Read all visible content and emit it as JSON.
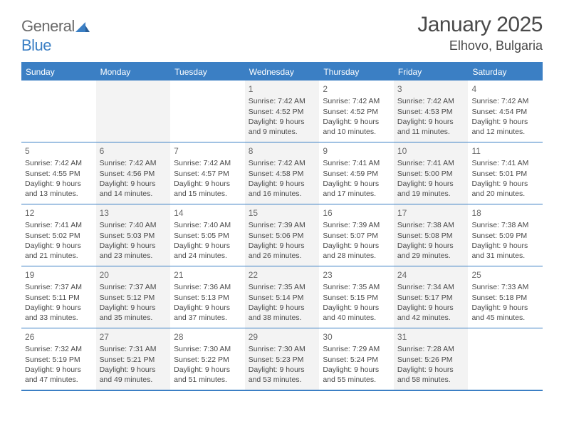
{
  "logo": {
    "word1": "General",
    "word2": "Blue"
  },
  "header": {
    "title": "January 2025",
    "location": "Elhovo, Bulgaria"
  },
  "colors": {
    "accent": "#3b7fc4",
    "text": "#4a4a4a",
    "altRowBg": "#f3f3f3"
  },
  "weekdays": [
    "Sunday",
    "Monday",
    "Tuesday",
    "Wednesday",
    "Thursday",
    "Friday",
    "Saturday"
  ],
  "layout": {
    "firstWeekdayIndex": 3,
    "daysInMonth": 31
  },
  "days": {
    "1": {
      "sunrise": "7:42 AM",
      "sunset": "4:52 PM",
      "daylight": "9 hours and 9 minutes."
    },
    "2": {
      "sunrise": "7:42 AM",
      "sunset": "4:52 PM",
      "daylight": "9 hours and 10 minutes."
    },
    "3": {
      "sunrise": "7:42 AM",
      "sunset": "4:53 PM",
      "daylight": "9 hours and 11 minutes."
    },
    "4": {
      "sunrise": "7:42 AM",
      "sunset": "4:54 PM",
      "daylight": "9 hours and 12 minutes."
    },
    "5": {
      "sunrise": "7:42 AM",
      "sunset": "4:55 PM",
      "daylight": "9 hours and 13 minutes."
    },
    "6": {
      "sunrise": "7:42 AM",
      "sunset": "4:56 PM",
      "daylight": "9 hours and 14 minutes."
    },
    "7": {
      "sunrise": "7:42 AM",
      "sunset": "4:57 PM",
      "daylight": "9 hours and 15 minutes."
    },
    "8": {
      "sunrise": "7:42 AM",
      "sunset": "4:58 PM",
      "daylight": "9 hours and 16 minutes."
    },
    "9": {
      "sunrise": "7:41 AM",
      "sunset": "4:59 PM",
      "daylight": "9 hours and 17 minutes."
    },
    "10": {
      "sunrise": "7:41 AM",
      "sunset": "5:00 PM",
      "daylight": "9 hours and 19 minutes."
    },
    "11": {
      "sunrise": "7:41 AM",
      "sunset": "5:01 PM",
      "daylight": "9 hours and 20 minutes."
    },
    "12": {
      "sunrise": "7:41 AM",
      "sunset": "5:02 PM",
      "daylight": "9 hours and 21 minutes."
    },
    "13": {
      "sunrise": "7:40 AM",
      "sunset": "5:03 PM",
      "daylight": "9 hours and 23 minutes."
    },
    "14": {
      "sunrise": "7:40 AM",
      "sunset": "5:05 PM",
      "daylight": "9 hours and 24 minutes."
    },
    "15": {
      "sunrise": "7:39 AM",
      "sunset": "5:06 PM",
      "daylight": "9 hours and 26 minutes."
    },
    "16": {
      "sunrise": "7:39 AM",
      "sunset": "5:07 PM",
      "daylight": "9 hours and 28 minutes."
    },
    "17": {
      "sunrise": "7:38 AM",
      "sunset": "5:08 PM",
      "daylight": "9 hours and 29 minutes."
    },
    "18": {
      "sunrise": "7:38 AM",
      "sunset": "5:09 PM",
      "daylight": "9 hours and 31 minutes."
    },
    "19": {
      "sunrise": "7:37 AM",
      "sunset": "5:11 PM",
      "daylight": "9 hours and 33 minutes."
    },
    "20": {
      "sunrise": "7:37 AM",
      "sunset": "5:12 PM",
      "daylight": "9 hours and 35 minutes."
    },
    "21": {
      "sunrise": "7:36 AM",
      "sunset": "5:13 PM",
      "daylight": "9 hours and 37 minutes."
    },
    "22": {
      "sunrise": "7:35 AM",
      "sunset": "5:14 PM",
      "daylight": "9 hours and 38 minutes."
    },
    "23": {
      "sunrise": "7:35 AM",
      "sunset": "5:15 PM",
      "daylight": "9 hours and 40 minutes."
    },
    "24": {
      "sunrise": "7:34 AM",
      "sunset": "5:17 PM",
      "daylight": "9 hours and 42 minutes."
    },
    "25": {
      "sunrise": "7:33 AM",
      "sunset": "5:18 PM",
      "daylight": "9 hours and 45 minutes."
    },
    "26": {
      "sunrise": "7:32 AM",
      "sunset": "5:19 PM",
      "daylight": "9 hours and 47 minutes."
    },
    "27": {
      "sunrise": "7:31 AM",
      "sunset": "5:21 PM",
      "daylight": "9 hours and 49 minutes."
    },
    "28": {
      "sunrise": "7:30 AM",
      "sunset": "5:22 PM",
      "daylight": "9 hours and 51 minutes."
    },
    "29": {
      "sunrise": "7:30 AM",
      "sunset": "5:23 PM",
      "daylight": "9 hours and 53 minutes."
    },
    "30": {
      "sunrise": "7:29 AM",
      "sunset": "5:24 PM",
      "daylight": "9 hours and 55 minutes."
    },
    "31": {
      "sunrise": "7:28 AM",
      "sunset": "5:26 PM",
      "daylight": "9 hours and 58 minutes."
    }
  },
  "labels": {
    "sunrise": "Sunrise:",
    "sunset": "Sunset:",
    "daylight": "Daylight:"
  }
}
